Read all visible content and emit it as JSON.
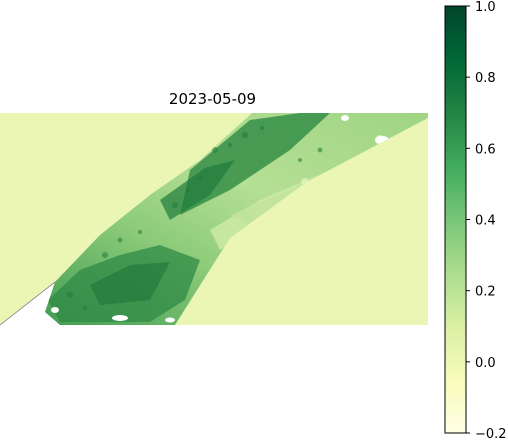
{
  "map": {
    "title": "2023-05-09"
  },
  "colorbar": {
    "colormap": "YlGn",
    "min": -0.2,
    "max": 1.0,
    "tick_values": [
      -0.2,
      0.0,
      0.2,
      0.4,
      0.6,
      0.8,
      1.0
    ],
    "tick_labels": [
      "−0.2",
      "0.0",
      "0.2",
      "0.4",
      "0.6",
      "0.8",
      "1.0"
    ],
    "stops": [
      "#ffffe5",
      "#f7fcb9",
      "#d9f0a3",
      "#addd8e",
      "#78c679",
      "#41ab5d",
      "#238443",
      "#006837",
      "#004529"
    ]
  },
  "colors": {
    "background_field": "#ecf6b4",
    "land_base": "#a5d68a",
    "dense_vegetation": "#2f8a46",
    "sparse_vegetation": "#c9e8a0"
  }
}
